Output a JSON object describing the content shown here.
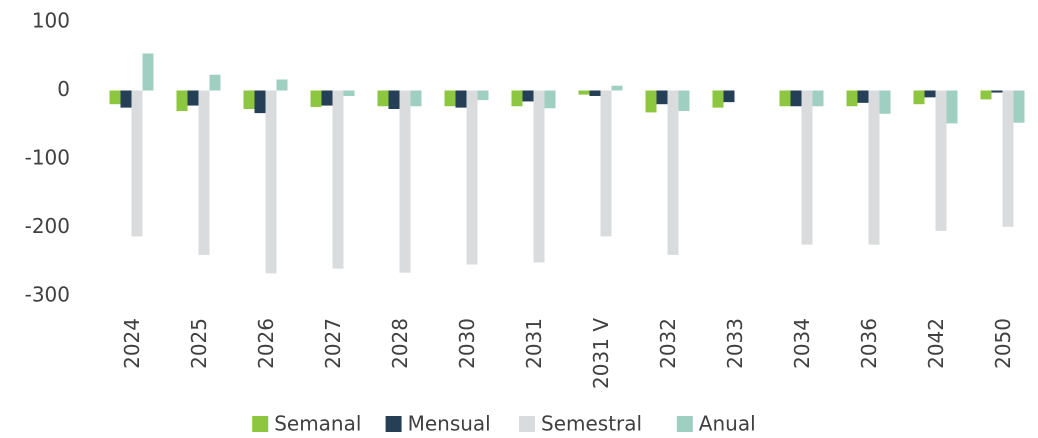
{
  "chart_data": {
    "type": "bar",
    "categories": [
      "2024",
      "2025",
      "2026",
      "2027",
      "2028",
      "2030",
      "2031",
      "2031 V",
      "2032",
      "2033",
      "2034",
      "2036",
      "2042",
      "2050"
    ],
    "series": [
      {
        "name": "Semanal",
        "color": "#8dc63f",
        "values": [
          -20,
          -30,
          -27,
          -24,
          -23,
          -23,
          -23,
          -6,
          -32,
          -25,
          -23,
          -23,
          -20,
          -13
        ]
      },
      {
        "name": "Mensual",
        "color": "#243f56",
        "values": [
          -25,
          -22,
          -33,
          -22,
          -27,
          -25,
          -16,
          -8,
          -20,
          -17,
          -23,
          -18,
          -10,
          -3
        ]
      },
      {
        "name": "Semestral",
        "color": "#d9dbdd",
        "values": [
          -213,
          -240,
          -267,
          -260,
          -266,
          -254,
          -251,
          -213,
          -240,
          null,
          -225,
          -225,
          -205,
          -199
        ]
      },
      {
        "name": "Anual",
        "color": "#9fcfc0",
        "values": [
          54,
          23,
          16,
          -8,
          -23,
          -14,
          -26,
          7,
          -30,
          null,
          -23,
          -34,
          -48,
          -47
        ]
      }
    ],
    "ylim": [
      -300,
      100
    ],
    "yticks": [
      -300,
      -200,
      -100,
      0,
      100
    ],
    "grid": false,
    "legend": "bottom"
  }
}
